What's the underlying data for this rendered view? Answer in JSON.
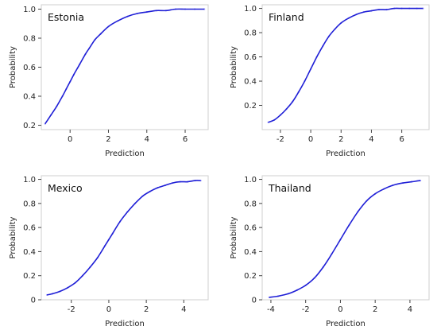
{
  "colors": {
    "curve": "#1f1fd6",
    "scatter": "#5a5aff"
  },
  "chart_data": [
    {
      "type": "line",
      "title": "Estonia",
      "xlabel": "Prediction",
      "ylabel": "Probability",
      "xlim": [
        -1.5,
        7.2
      ],
      "ylim": [
        0.17,
        1.03
      ],
      "xticks": [
        0,
        2,
        4,
        6
      ],
      "xtick_labels": [
        "0",
        "2",
        "4",
        "6"
      ],
      "yticks": [
        0.2,
        0.4,
        0.6,
        0.8,
        1.0
      ],
      "ytick_labels": [
        "0.2",
        "0.4",
        "0.6",
        "0.8",
        "1.0"
      ],
      "series": [
        {
          "x": [
            -1.3,
            -1.0,
            -0.7,
            -0.4,
            -0.2,
            0.0,
            0.2,
            0.5,
            0.8,
            1.0,
            1.3,
            1.6,
            2.0,
            2.5,
            3.0,
            3.5,
            4.0,
            4.5,
            5.0,
            5.5,
            6.0,
            6.5,
            7.0
          ],
          "y": [
            0.21,
            0.27,
            0.33,
            0.4,
            0.45,
            0.5,
            0.55,
            0.62,
            0.69,
            0.73,
            0.79,
            0.83,
            0.88,
            0.92,
            0.95,
            0.97,
            0.98,
            0.99,
            0.99,
            1.0,
            1.0,
            1.0,
            1.0
          ]
        }
      ]
    },
    {
      "type": "line",
      "title": "Finland",
      "xlabel": "Prediction",
      "ylabel": "Probability",
      "xlim": [
        -3.2,
        7.8
      ],
      "ylim": [
        0.0,
        1.03
      ],
      "xticks": [
        -2,
        0,
        2,
        4,
        6
      ],
      "xtick_labels": [
        "-2",
        "0",
        "2",
        "4",
        "6"
      ],
      "yticks": [
        0.2,
        0.4,
        0.6,
        0.8,
        1.0
      ],
      "ytick_labels": [
        "0.2",
        "0.4",
        "0.6",
        "0.8",
        "1.0"
      ],
      "series": [
        {
          "x": [
            -2.8,
            -2.4,
            -2.0,
            -1.6,
            -1.2,
            -0.8,
            -0.4,
            0.0,
            0.4,
            0.8,
            1.2,
            1.6,
            2.0,
            2.5,
            3.0,
            3.5,
            4.0,
            4.5,
            5.0,
            5.5,
            6.0,
            6.5,
            7.0,
            7.4
          ],
          "y": [
            0.06,
            0.08,
            0.12,
            0.17,
            0.23,
            0.31,
            0.4,
            0.5,
            0.6,
            0.69,
            0.77,
            0.83,
            0.88,
            0.92,
            0.95,
            0.97,
            0.98,
            0.99,
            0.99,
            1.0,
            1.0,
            1.0,
            1.0,
            1.0
          ]
        }
      ]
    },
    {
      "type": "line",
      "title": "Mexico",
      "xlabel": "Prediction",
      "ylabel": "Probability",
      "xlim": [
        -3.6,
        5.3
      ],
      "ylim": [
        0.0,
        1.03
      ],
      "xticks": [
        -2,
        0,
        2,
        4
      ],
      "xtick_labels": [
        "-2",
        "0",
        "2",
        "4"
      ],
      "yticks": [
        0.0,
        0.2,
        0.4,
        0.6,
        0.8,
        1.0
      ],
      "ytick_labels": [
        "0",
        "0.2",
        "0.4",
        "0.6",
        "0.8",
        "1.0"
      ],
      "series": [
        {
          "x": [
            -3.3,
            -3.0,
            -2.6,
            -2.2,
            -1.8,
            -1.4,
            -1.0,
            -0.6,
            -0.2,
            0.0,
            0.2,
            0.6,
            1.0,
            1.4,
            1.8,
            2.2,
            2.6,
            3.0,
            3.4,
            3.8,
            4.2,
            4.6,
            4.9
          ],
          "y": [
            0.04,
            0.05,
            0.07,
            0.1,
            0.14,
            0.2,
            0.27,
            0.35,
            0.45,
            0.5,
            0.55,
            0.65,
            0.73,
            0.8,
            0.86,
            0.9,
            0.93,
            0.95,
            0.97,
            0.98,
            0.98,
            0.99,
            0.99
          ]
        }
      ]
    },
    {
      "type": "line",
      "title": "Thailand",
      "xlabel": "Prediction",
      "ylabel": "Probability",
      "xlim": [
        -4.5,
        5.1
      ],
      "ylim": [
        0.0,
        1.03
      ],
      "xticks": [
        -4,
        -2,
        0,
        2,
        4
      ],
      "xtick_labels": [
        "-4",
        "-2",
        "0",
        "2",
        "4"
      ],
      "yticks": [
        0.0,
        0.2,
        0.4,
        0.6,
        0.8,
        1.0
      ],
      "ytick_labels": [
        "0",
        "0.2",
        "0.4",
        "0.6",
        "0.8",
        "1.0"
      ],
      "series": [
        {
          "x": [
            -4.1,
            -3.6,
            -3.0,
            -2.5,
            -2.0,
            -1.5,
            -1.0,
            -0.5,
            0.0,
            0.5,
            1.0,
            1.5,
            2.0,
            2.5,
            3.0,
            3.6,
            4.1,
            4.6
          ],
          "y": [
            0.02,
            0.03,
            0.05,
            0.08,
            0.12,
            0.18,
            0.27,
            0.38,
            0.5,
            0.62,
            0.73,
            0.82,
            0.88,
            0.92,
            0.95,
            0.97,
            0.98,
            0.99
          ]
        }
      ]
    }
  ]
}
